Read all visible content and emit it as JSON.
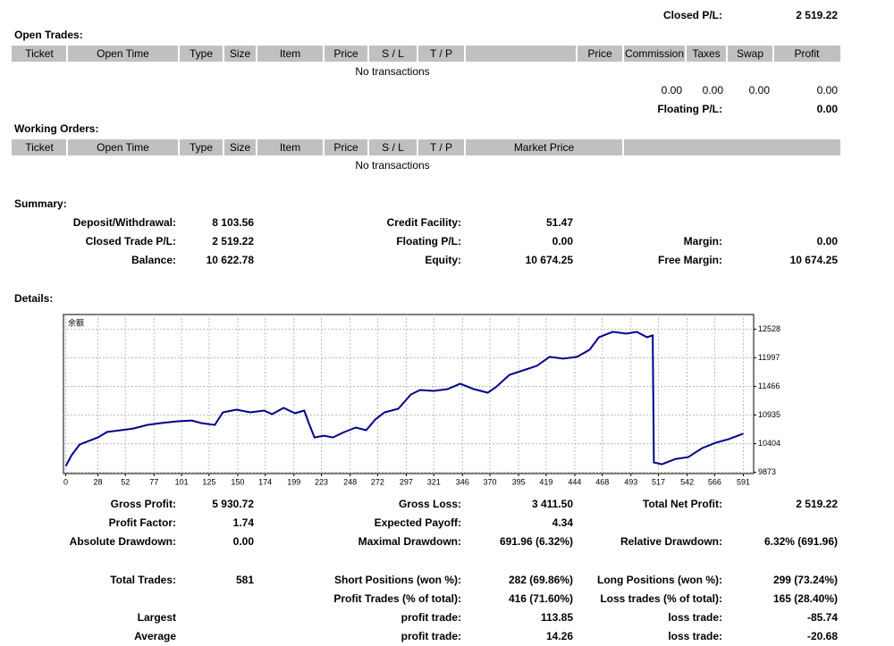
{
  "closed_pl": {
    "label": "Closed P/L:",
    "value": "2 519.22"
  },
  "open_trades": {
    "title": "Open Trades:",
    "columns": [
      "Ticket",
      "Open Time",
      "Type",
      "Size",
      "Item",
      "Price",
      "S / L",
      "T / P",
      null,
      "Price",
      "Commission",
      "Taxes",
      "Swap",
      "Profit"
    ],
    "empty": "No transactions",
    "totals": [
      "0.00",
      "0.00",
      "0.00",
      "0.00"
    ],
    "floating": {
      "label": "Floating P/L:",
      "value": "0.00"
    }
  },
  "working_orders": {
    "title": "Working Orders:",
    "columns": [
      "Ticket",
      "Open Time",
      "Type",
      "Size",
      "Item",
      "Price",
      "S / L",
      "T / P",
      "Market Price",
      null
    ],
    "empty": "No transactions"
  },
  "summary": {
    "title": "Summary:",
    "rows": [
      [
        {
          "label": "Deposit/Withdrawal:",
          "value": "8 103.56"
        },
        {
          "label": "Credit Facility:",
          "value": "51.47"
        }
      ],
      [
        {
          "label": "Closed Trade P/L:",
          "value": "2 519.22"
        },
        {
          "label": "Floating P/L:",
          "value": "0.00"
        },
        {
          "label": "Margin:",
          "value": "0.00"
        }
      ],
      [
        {
          "label": "Balance:",
          "value": "10 622.78"
        },
        {
          "label": "Equity:",
          "value": "10 674.25"
        },
        {
          "label": "Free Margin:",
          "value": "10 674.25"
        }
      ]
    ]
  },
  "details": {
    "title": "Details:",
    "rows": [
      [
        {
          "label": "Gross Profit:",
          "value": "5 930.72"
        },
        {
          "label": "Gross Loss:",
          "value": "3 411.50"
        },
        {
          "label": "Total Net Profit:",
          "value": "2 519.22"
        }
      ],
      [
        {
          "label": "Profit Factor:",
          "value": "1.74"
        },
        {
          "label": "Expected Payoff:",
          "value": "4.34"
        }
      ],
      [
        {
          "label": "Absolute Drawdown:",
          "value": "0.00"
        },
        {
          "label": "Maximal Drawdown:",
          "value": "691.96 (6.32%)"
        },
        {
          "label": "Relative Drawdown:",
          "value": "6.32% (691.96)"
        }
      ],
      [
        {
          "label": "Total Trades:",
          "value": "581"
        },
        {
          "label": "Short Positions (won %):",
          "value": "282 (69.86%)"
        },
        {
          "label": "Long Positions (won %):",
          "value": "299 (73.24%)"
        }
      ],
      [
        null,
        {
          "label": "Profit Trades (% of total):",
          "value": "416 (71.60%)"
        },
        {
          "label": "Loss trades (% of total):",
          "value": "165 (28.40%)"
        }
      ],
      [
        {
          "label": "Largest"
        },
        {
          "label": "profit trade:",
          "value": "113.85"
        },
        {
          "label": "loss trade:",
          "value": "-85.74"
        }
      ],
      [
        {
          "label": "Average"
        },
        {
          "label": "profit trade:",
          "value": "14.26"
        },
        {
          "label": "loss trade:",
          "value": "-20.68"
        }
      ]
    ]
  },
  "chart_data": {
    "type": "line",
    "title": "余额",
    "color": "#00008b",
    "grid": true,
    "x": [
      0,
      5,
      12,
      20,
      28,
      36,
      48,
      59,
      71,
      83,
      98,
      110,
      118,
      130,
      137,
      149,
      161,
      173,
      180,
      190,
      200,
      208,
      212,
      217,
      225,
      233,
      243,
      253,
      262,
      270,
      278,
      290,
      301,
      309,
      321,
      333,
      344,
      356,
      368,
      375,
      387,
      399,
      411,
      422,
      434,
      446,
      457,
      465,
      477,
      489,
      498,
      507,
      512,
      513,
      520,
      532,
      543,
      555,
      567,
      578,
      591
    ],
    "values": [
      9990,
      10188,
      10387,
      10454,
      10520,
      10620,
      10653,
      10686,
      10752,
      10786,
      10819,
      10835,
      10786,
      10752,
      10985,
      11035,
      10985,
      11018,
      10952,
      11068,
      10968,
      11018,
      10786,
      10520,
      10553,
      10520,
      10620,
      10703,
      10653,
      10852,
      10985,
      11051,
      11317,
      11400,
      11383,
      11416,
      11516,
      11416,
      11350,
      11450,
      11682,
      11765,
      11848,
      12014,
      11981,
      12014,
      12147,
      12379,
      12479,
      12446,
      12479,
      12379,
      12412,
      10056,
      10022,
      10122,
      10155,
      10321,
      10421,
      10487,
      10590
    ],
    "xlim": [
      -2,
      600
    ],
    "ylim": [
      9850,
      12800
    ],
    "xticks": [
      0,
      28,
      52,
      77,
      101,
      125,
      150,
      174,
      199,
      223,
      248,
      272,
      297,
      321,
      346,
      370,
      395,
      419,
      444,
      468,
      493,
      517,
      542,
      566,
      591
    ],
    "yticks": [
      9873,
      10404,
      10935,
      11466,
      11997,
      12528
    ]
  }
}
